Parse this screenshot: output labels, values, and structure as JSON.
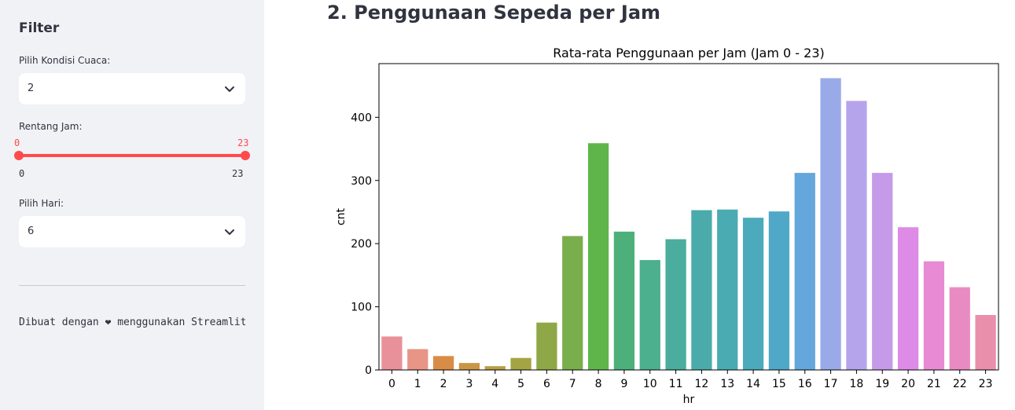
{
  "sidebar": {
    "heading": "Filter",
    "weather_label": "Pilih Kondisi Cuaca:",
    "weather_value": "2",
    "hour_label": "Rentang Jam:",
    "hour_current_min": "0",
    "hour_current_max": "23",
    "hour_range_min": "0",
    "hour_range_max": "23",
    "day_label": "Pilih Hari:",
    "day_value": "6",
    "footer": "Dibuat dengan ❤ menggunakan Streamlit"
  },
  "main": {
    "title": "2. Penggunaan Sepeda per Jam"
  },
  "colors": {
    "accent": "#ff4b4b",
    "sidebar_bg": "#f0f2f6"
  },
  "chart_data": {
    "type": "bar",
    "title": "Rata-rata Penggunaan per Jam (Jam 0 - 23)",
    "xlabel": "hr",
    "ylabel": "cnt",
    "categories": [
      "0",
      "1",
      "2",
      "3",
      "4",
      "5",
      "6",
      "7",
      "8",
      "9",
      "10",
      "11",
      "12",
      "13",
      "14",
      "15",
      "16",
      "17",
      "18",
      "19",
      "20",
      "21",
      "22",
      "23"
    ],
    "values": [
      53,
      33,
      22,
      11,
      6,
      19,
      75,
      212,
      359,
      219,
      174,
      207,
      253,
      254,
      241,
      251,
      312,
      462,
      426,
      312,
      226,
      172,
      131,
      87
    ],
    "colors": [
      "#e8919a",
      "#e89487",
      "#d98c48",
      "#c99645",
      "#b99e45",
      "#a4a444",
      "#8fa847",
      "#7aad4c",
      "#5fb54a",
      "#4db07a",
      "#4caf8d",
      "#4aad9d",
      "#4babaa",
      "#4aabb2",
      "#4baabc",
      "#4fa8c8",
      "#63a7dc",
      "#9aaae8",
      "#b5a4ec",
      "#c59ae9",
      "#dd8be6",
      "#e68bd4",
      "#e98bc3",
      "#e98fab"
    ],
    "ylim": [
      0,
      485
    ],
    "yticks": [
      0,
      100,
      200,
      300,
      400
    ]
  }
}
